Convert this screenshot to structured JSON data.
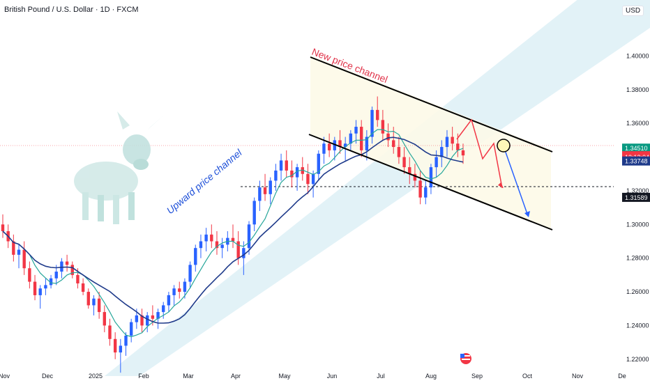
{
  "header": {
    "title": "British Pound / U.S. Dollar · 1D · FXCM",
    "currency": "USD"
  },
  "chart_data": {
    "type": "candlestick",
    "symbol": "British Pound / U.S. Dollar",
    "interval": "1D",
    "source": "FXCM",
    "ylim": [
      1.21,
      1.425
    ],
    "y_ticks": [
      "1.40000",
      "1.38000",
      "1.36000",
      "1.34000",
      "1.32000",
      "1.30000",
      "1.28000",
      "1.26000",
      "1.24000",
      "1.22000"
    ],
    "x_ticks": [
      "Nov",
      "Dec",
      "2025",
      "Feb",
      "Mar",
      "Apr",
      "May",
      "Jun",
      "Jul",
      "Aug",
      "Sep",
      "Oct",
      "Nov",
      "De"
    ],
    "price_labels": [
      {
        "value": "1.34510",
        "color": "#089981"
      },
      {
        "value": "1.34062",
        "color": "#f23645"
      },
      {
        "value": "13:12:04",
        "color": "#f23645"
      },
      {
        "value": "1.33748",
        "color": "#1e3a8a"
      },
      {
        "value": "1.31589",
        "color": "#131722"
      }
    ],
    "horizontal_level": 1.31589,
    "annotations": [
      {
        "text": "New price channel",
        "color": "#e0344a"
      },
      {
        "text": "Upward price channel",
        "color": "#1d4fd8"
      }
    ],
    "series": [
      {
        "kind": "candles",
        "values": [
          [
            1.3,
            1.306,
            1.292,
            1.296
          ],
          [
            1.296,
            1.3,
            1.286,
            1.29
          ],
          [
            1.29,
            1.294,
            1.278,
            1.282
          ],
          [
            1.282,
            1.288,
            1.274,
            1.285
          ],
          [
            1.285,
            1.29,
            1.27,
            1.274
          ],
          [
            1.274,
            1.278,
            1.262,
            1.266
          ],
          [
            1.266,
            1.27,
            1.255,
            1.258
          ],
          [
            1.258,
            1.264,
            1.25,
            1.262
          ],
          [
            1.262,
            1.268,
            1.258,
            1.264
          ],
          [
            1.264,
            1.27,
            1.262,
            1.268
          ],
          [
            1.268,
            1.276,
            1.264,
            1.272
          ],
          [
            1.272,
            1.28,
            1.268,
            1.278
          ],
          [
            1.278,
            1.282,
            1.272,
            1.276
          ],
          [
            1.276,
            1.278,
            1.268,
            1.27
          ],
          [
            1.27,
            1.274,
            1.262,
            1.265
          ],
          [
            1.265,
            1.268,
            1.258,
            1.26
          ],
          [
            1.26,
            1.262,
            1.25,
            1.252
          ],
          [
            1.252,
            1.258,
            1.246,
            1.256
          ],
          [
            1.256,
            1.26,
            1.244,
            1.248
          ],
          [
            1.248,
            1.252,
            1.236,
            1.24
          ],
          [
            1.24,
            1.244,
            1.228,
            1.232
          ],
          [
            1.232,
            1.236,
            1.22,
            1.224
          ],
          [
            1.224,
            1.232,
            1.212,
            1.228
          ],
          [
            1.228,
            1.236,
            1.222,
            1.234
          ],
          [
            1.234,
            1.244,
            1.23,
            1.242
          ],
          [
            1.242,
            1.25,
            1.238,
            1.246
          ],
          [
            1.246,
            1.25,
            1.236,
            1.24
          ],
          [
            1.24,
            1.248,
            1.236,
            1.246
          ],
          [
            1.246,
            1.252,
            1.24,
            1.244
          ],
          [
            1.244,
            1.25,
            1.238,
            1.248
          ],
          [
            1.248,
            1.254,
            1.244,
            1.252
          ],
          [
            1.252,
            1.26,
            1.248,
            1.258
          ],
          [
            1.258,
            1.264,
            1.252,
            1.262
          ],
          [
            1.262,
            1.266,
            1.256,
            1.26
          ],
          [
            1.26,
            1.268,
            1.256,
            1.266
          ],
          [
            1.266,
            1.278,
            1.262,
            1.276
          ],
          [
            1.276,
            1.288,
            1.272,
            1.286
          ],
          [
            1.286,
            1.294,
            1.28,
            1.29
          ],
          [
            1.29,
            1.298,
            1.284,
            1.294
          ],
          [
            1.294,
            1.3,
            1.286,
            1.29
          ],
          [
            1.29,
            1.296,
            1.282,
            1.286
          ],
          [
            1.286,
            1.292,
            1.28,
            1.288
          ],
          [
            1.288,
            1.296,
            1.284,
            1.292
          ],
          [
            1.292,
            1.3,
            1.286,
            1.29
          ],
          [
            1.29,
            1.296,
            1.276,
            1.28
          ],
          [
            1.28,
            1.29,
            1.27,
            1.286
          ],
          [
            1.286,
            1.302,
            1.282,
            1.3
          ],
          [
            1.3,
            1.316,
            1.296,
            1.314
          ],
          [
            1.314,
            1.326,
            1.308,
            1.322
          ],
          [
            1.322,
            1.33,
            1.314,
            1.318
          ],
          [
            1.318,
            1.328,
            1.312,
            1.326
          ],
          [
            1.326,
            1.336,
            1.32,
            1.332
          ],
          [
            1.332,
            1.342,
            1.326,
            1.338
          ],
          [
            1.338,
            1.344,
            1.328,
            1.332
          ],
          [
            1.332,
            1.338,
            1.322,
            1.328
          ],
          [
            1.328,
            1.336,
            1.32,
            1.334
          ],
          [
            1.334,
            1.34,
            1.326,
            1.33
          ],
          [
            1.33,
            1.336,
            1.318,
            1.324
          ],
          [
            1.324,
            1.332,
            1.316,
            1.33
          ],
          [
            1.33,
            1.344,
            1.326,
            1.342
          ],
          [
            1.342,
            1.352,
            1.336,
            1.348
          ],
          [
            1.348,
            1.354,
            1.34,
            1.344
          ],
          [
            1.344,
            1.352,
            1.338,
            1.35
          ],
          [
            1.35,
            1.356,
            1.342,
            1.346
          ],
          [
            1.346,
            1.352,
            1.338,
            1.348
          ],
          [
            1.348,
            1.356,
            1.344,
            1.354
          ],
          [
            1.354,
            1.362,
            1.348,
            1.358
          ],
          [
            1.358,
            1.362,
            1.34,
            1.344
          ],
          [
            1.344,
            1.356,
            1.338,
            1.352
          ],
          [
            1.352,
            1.37,
            1.348,
            1.368
          ],
          [
            1.368,
            1.376,
            1.358,
            1.362
          ],
          [
            1.362,
            1.368,
            1.35,
            1.354
          ],
          [
            1.354,
            1.36,
            1.346,
            1.35
          ],
          [
            1.35,
            1.358,
            1.342,
            1.346
          ],
          [
            1.346,
            1.352,
            1.336,
            1.34
          ],
          [
            1.34,
            1.346,
            1.33,
            1.334
          ],
          [
            1.334,
            1.34,
            1.324,
            1.33
          ],
          [
            1.33,
            1.336,
            1.322,
            1.326
          ],
          [
            1.326,
            1.332,
            1.312,
            1.316
          ],
          [
            1.316,
            1.326,
            1.312,
            1.322
          ],
          [
            1.322,
            1.336,
            1.318,
            1.334
          ],
          [
            1.334,
            1.344,
            1.328,
            1.34
          ],
          [
            1.34,
            1.35,
            1.334,
            1.346
          ],
          [
            1.346,
            1.356,
            1.34,
            1.352
          ],
          [
            1.352,
            1.358,
            1.344,
            1.348
          ],
          [
            1.348,
            1.354,
            1.34,
            1.344
          ],
          [
            1.344,
            1.348,
            1.336,
            1.341
          ]
        ]
      },
      {
        "kind": "ma_fast",
        "color": "#26a69a"
      },
      {
        "kind": "ma_slow",
        "color": "#1e3a8a"
      }
    ]
  }
}
